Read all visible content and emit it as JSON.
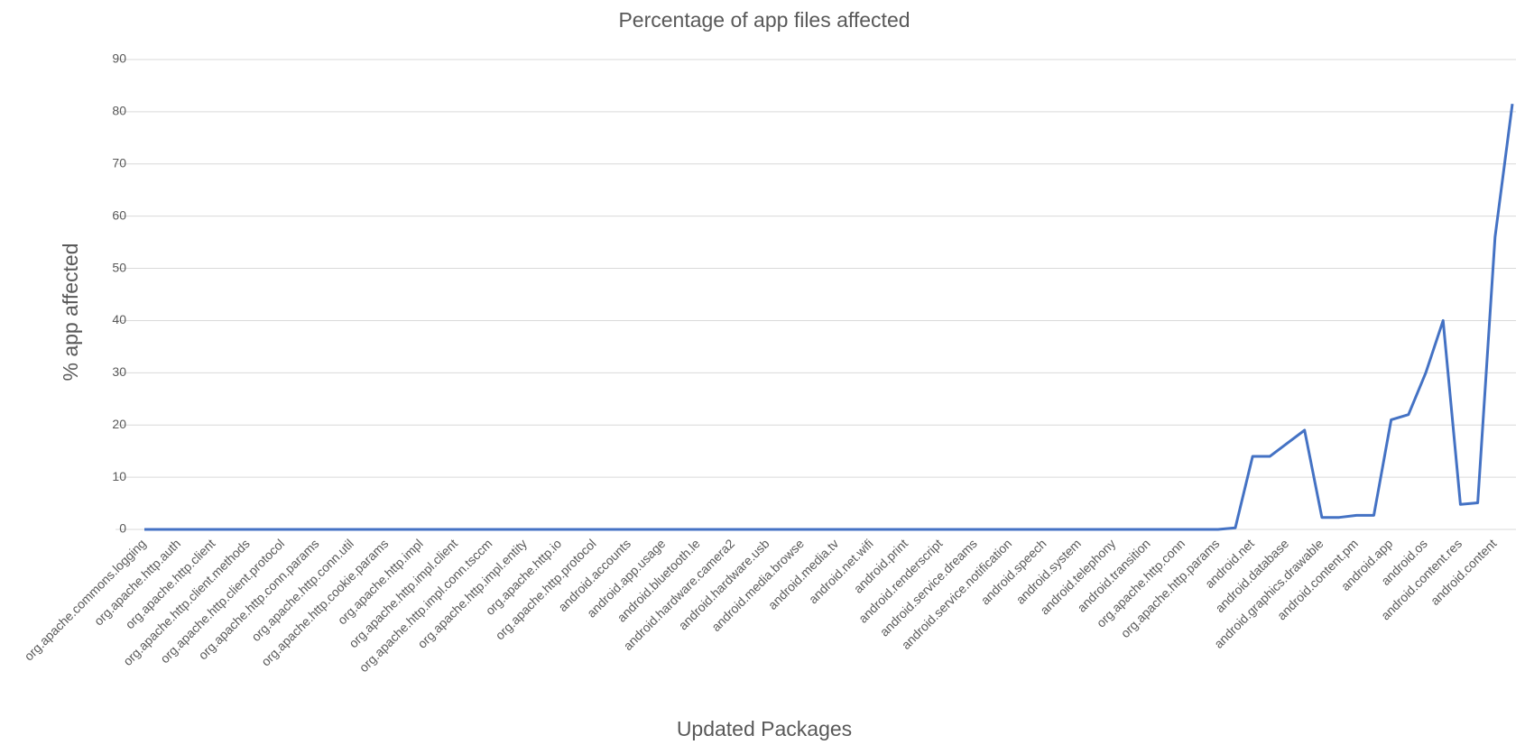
{
  "chart_data": {
    "type": "line",
    "title": "Percentage of app files affected",
    "x_label": "Updated Packages",
    "y_label": "% app affected",
    "categories": [
      "org.apache.commons.logging",
      null,
      "org.apache.http.auth",
      null,
      "org.apache.http.client",
      null,
      "org.apache.http.client.methods",
      null,
      "org.apache.http.client.protocol",
      null,
      "org.apache.http.conn.params",
      null,
      "org.apache.http.conn.util",
      null,
      "org.apache.http.cookie.params",
      null,
      "org.apache.http.impl",
      null,
      "org.apache.http.impl.client",
      null,
      "org.apache.http.impl.conn.tsccm",
      null,
      "org.apache.http.impl.entity",
      null,
      "org.apache.http.io",
      null,
      "org.apache.http.protocol",
      null,
      "android.accounts",
      null,
      "android.app.usage",
      null,
      "android.bluetooth.le",
      null,
      "android.hardware.camera2",
      null,
      "android.hardware.usb",
      null,
      "android.media.browse",
      null,
      "android.media.tv",
      null,
      "android.net.wifi",
      null,
      "android.print",
      null,
      "android.renderscript",
      null,
      "android.service.dreams",
      null,
      "android.service.notification",
      null,
      "android.speech",
      null,
      "android.system",
      null,
      "android.telephony",
      null,
      "android.transition",
      null,
      "org.apache.http.conn",
      null,
      "org.apache.http.params",
      null,
      "android.net",
      null,
      "android.database",
      null,
      "android.graphics.drawable",
      null,
      "android.content.pm",
      null,
      "android.app",
      null,
      "android.os",
      null,
      "android.content.res",
      null,
      "android.content",
      null
    ],
    "series": [
      {
        "name": "% app affected",
        "color": "#4472c4",
        "values": [
          0,
          0,
          0,
          0,
          0,
          0,
          0,
          0,
          0,
          0,
          0,
          0,
          0,
          0,
          0,
          0,
          0,
          0,
          0,
          0,
          0,
          0,
          0,
          0,
          0,
          0,
          0,
          0,
          0,
          0,
          0,
          0,
          0,
          0,
          0,
          0,
          0,
          0,
          0,
          0,
          0,
          0,
          0,
          0,
          0,
          0,
          0,
          0,
          0,
          0,
          0,
          0,
          0,
          0,
          0,
          0,
          0,
          0,
          0,
          0,
          0,
          0,
          0,
          0.3,
          14,
          14,
          16.5,
          19,
          2.3,
          2.3,
          2.7,
          2.7,
          21,
          22,
          30,
          40,
          4.8,
          5.1,
          56,
          81.5
        ]
      }
    ],
    "ylim": [
      0,
      90
    ],
    "yticks": [
      0,
      10,
      20,
      30,
      40,
      50,
      60,
      70,
      80,
      90
    ],
    "grid": true
  }
}
